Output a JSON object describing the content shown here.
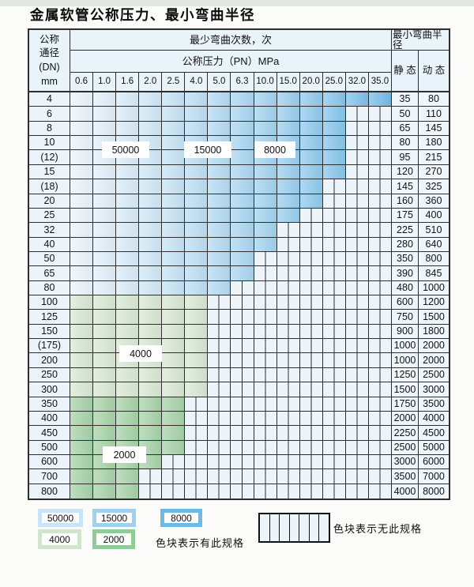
{
  "title": "金属软管公称压力、最小弯曲半径",
  "table": {
    "header": {
      "dn_lines": [
        "公称",
        "通径",
        "(DN)",
        "mm"
      ],
      "bend_cycles_label": "最少弯曲次数，次",
      "pressure_label": "公称压力（PN）MPa",
      "pressures": [
        "0.6",
        "1.0",
        "1.6",
        "2.0",
        "2.5",
        "4.0",
        "5.0",
        "6.3",
        "10.0",
        "15.0",
        "20.0",
        "25.0",
        "32.0",
        "35.0"
      ],
      "radius_label": "最小弯曲半径",
      "static_label": "静 态",
      "dynamic_label": "动 态"
    },
    "rows": [
      {
        "dn": "4",
        "colored": 14,
        "zone": "blue",
        "static": "35",
        "dynamic": "80"
      },
      {
        "dn": "6",
        "colored": 12,
        "zone": "blue",
        "static": "50",
        "dynamic": "110"
      },
      {
        "dn": "8",
        "colored": 12,
        "zone": "blue",
        "static": "65",
        "dynamic": "145"
      },
      {
        "dn": "10",
        "colored": 12,
        "zone": "blue",
        "static": "80",
        "dynamic": "180"
      },
      {
        "dn": "(12)",
        "colored": 12,
        "zone": "blue",
        "static": "95",
        "dynamic": "215"
      },
      {
        "dn": "15",
        "colored": 12,
        "zone": "blue",
        "static": "120",
        "dynamic": "270"
      },
      {
        "dn": "(18)",
        "colored": 11,
        "zone": "blue",
        "static": "145",
        "dynamic": "325"
      },
      {
        "dn": "20",
        "colored": 11,
        "zone": "blue",
        "static": "160",
        "dynamic": "360"
      },
      {
        "dn": "25",
        "colored": 10,
        "zone": "blue",
        "static": "175",
        "dynamic": "400"
      },
      {
        "dn": "32",
        "colored": 9,
        "zone": "blue",
        "static": "225",
        "dynamic": "510"
      },
      {
        "dn": "40",
        "colored": 9,
        "zone": "blue",
        "static": "280",
        "dynamic": "640"
      },
      {
        "dn": "50",
        "colored": 8,
        "zone": "blue",
        "static": "350",
        "dynamic": "800"
      },
      {
        "dn": "65",
        "colored": 8,
        "zone": "blue",
        "static": "390",
        "dynamic": "845"
      },
      {
        "dn": "80",
        "colored": 7,
        "zone": "blue",
        "static": "480",
        "dynamic": "1000"
      },
      {
        "dn": "100",
        "colored": 6,
        "zone": "g4",
        "static": "600",
        "dynamic": "1200"
      },
      {
        "dn": "125",
        "colored": 6,
        "zone": "g4",
        "static": "750",
        "dynamic": "1500"
      },
      {
        "dn": "150",
        "colored": 6,
        "zone": "g4",
        "static": "900",
        "dynamic": "1800"
      },
      {
        "dn": "(175)",
        "colored": 6,
        "zone": "g4",
        "static": "1000",
        "dynamic": "2000"
      },
      {
        "dn": "200",
        "colored": 6,
        "zone": "g4",
        "static": "1000",
        "dynamic": "2000"
      },
      {
        "dn": "250",
        "colored": 6,
        "zone": "g4",
        "static": "1250",
        "dynamic": "2500"
      },
      {
        "dn": "300",
        "colored": 6,
        "zone": "g4",
        "static": "1500",
        "dynamic": "3000"
      },
      {
        "dn": "350",
        "colored": 5,
        "zone": "g2",
        "static": "1750",
        "dynamic": "3500"
      },
      {
        "dn": "400",
        "colored": 5,
        "zone": "g2",
        "static": "2000",
        "dynamic": "4000"
      },
      {
        "dn": "450",
        "colored": 5,
        "zone": "g2",
        "static": "2250",
        "dynamic": "4500"
      },
      {
        "dn": "500",
        "colored": 5,
        "zone": "g2",
        "static": "2500",
        "dynamic": "5000"
      },
      {
        "dn": "600",
        "colored": 4,
        "zone": "g2",
        "static": "3000",
        "dynamic": "6000"
      },
      {
        "dn": "700",
        "colored": 3,
        "zone": "g2",
        "static": "3500",
        "dynamic": "7000"
      },
      {
        "dn": "800",
        "colored": 3,
        "zone": "g2",
        "static": "4000",
        "dynamic": "8000"
      }
    ]
  },
  "zone_labels": {
    "z50000": "50000",
    "z15000": "15000",
    "z8000": "8000",
    "z4000": "4000",
    "z2000": "2000"
  },
  "legend": {
    "blocks": [
      {
        "label": "50000",
        "color": "#c9e4f6"
      },
      {
        "label": "15000",
        "color": "#9ed1ef"
      },
      {
        "label": "8000",
        "color": "#6cb9e6"
      },
      {
        "label": "4000",
        "color": "#cfe5cc"
      },
      {
        "label": "2000",
        "color": "#91cb97"
      }
    ],
    "has_spec_label": "色块表示有此规格",
    "no_spec_label": "色块表示无此规格"
  },
  "colors": {
    "grid-line": "#2e2e2e",
    "header-bg": "#e9f3fa",
    "label-col-bg": "#ebf4fa",
    "value-col-bg": "#eef5fb",
    "stripe-bg": "#edf4fa",
    "blue-light": "#eaf4fb",
    "blue-dark": "#74bce8",
    "green-4000": "#d8e8d3",
    "green-2000": "#a6d2a7"
  }
}
